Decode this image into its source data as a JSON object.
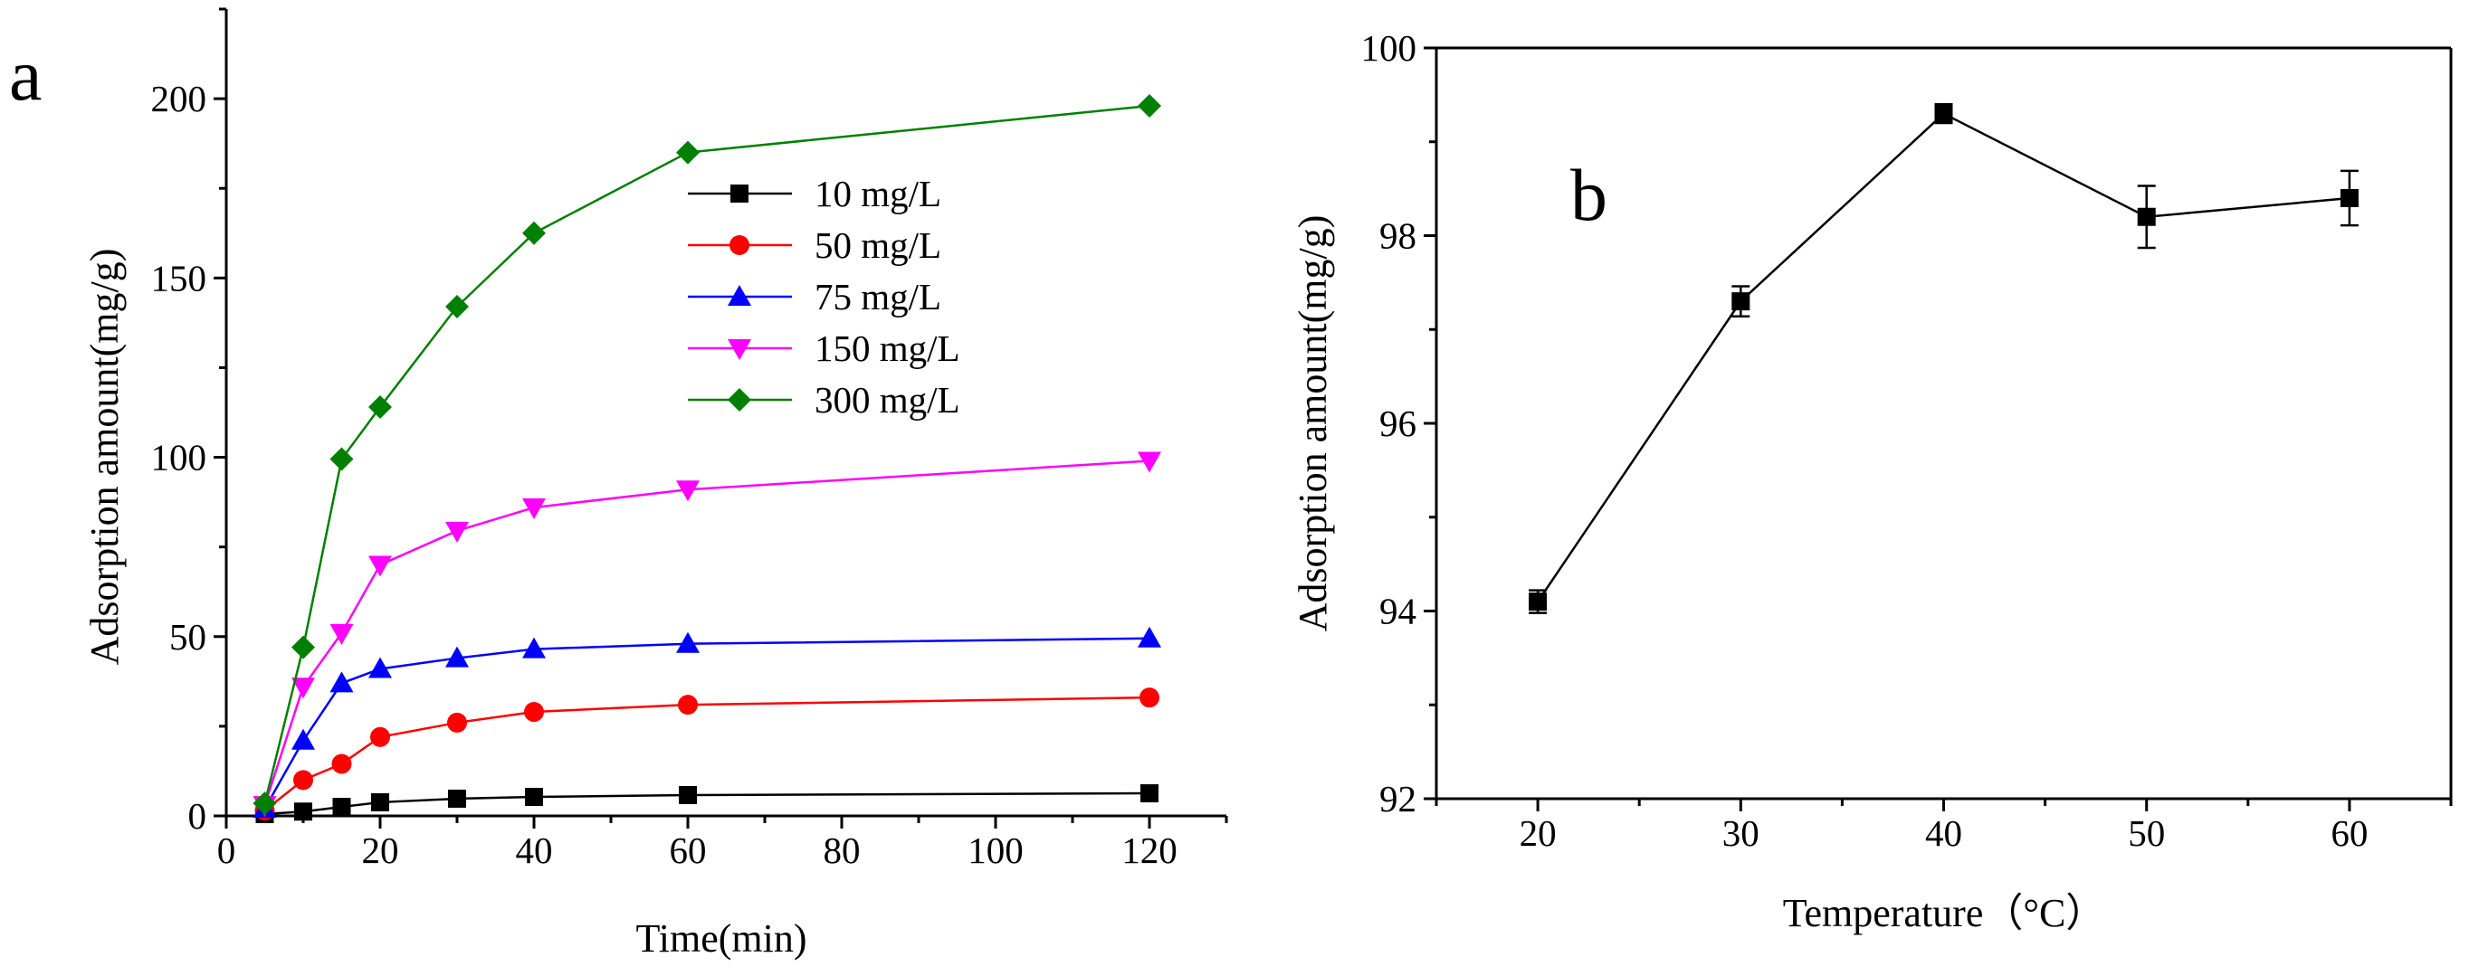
{
  "panels": {
    "a": {
      "letter": "a"
    },
    "b": {
      "letter": "b"
    }
  },
  "chart_data": [
    {
      "type": "line",
      "panel": "a",
      "title": "",
      "xlabel": "Time(min)",
      "ylabel": "Adsorption amount(mg/g)",
      "xlim": [
        0,
        130
      ],
      "ylim": [
        0,
        225
      ],
      "x_ticks": [
        0,
        20,
        40,
        60,
        80,
        100,
        120
      ],
      "x_tick_labels": [
        "0",
        "20",
        "40",
        "60",
        "80",
        "100",
        "120"
      ],
      "y_ticks": [
        0,
        50,
        100,
        150,
        200
      ],
      "y_tick_labels": [
        "0",
        "50",
        "100",
        "150",
        "200"
      ],
      "legend_position": "top-center",
      "x": [
        5,
        10,
        15,
        20,
        30,
        40,
        60,
        120
      ],
      "series": [
        {
          "name": "10 mg/L",
          "color": "#000000",
          "marker": "square",
          "values": [
            0.5,
            1.2,
            2.5,
            3.8,
            4.8,
            5.3,
            5.8,
            6.3
          ]
        },
        {
          "name": "50 mg/L",
          "color": "#ff0000",
          "marker": "circle",
          "values": [
            1.5,
            10,
            14.5,
            22,
            26,
            29,
            31,
            33
          ]
        },
        {
          "name": "75 mg/L",
          "color": "#0000ff",
          "marker": "triangle-up",
          "values": [
            2,
            21,
            37,
            41,
            44,
            46.5,
            48,
            49.5
          ]
        },
        {
          "name": "150 mg/L",
          "color": "#ff00ff",
          "marker": "triangle-down",
          "values": [
            3,
            36,
            51,
            70,
            79.5,
            86,
            91,
            99
          ]
        },
        {
          "name": "300 mg/L",
          "color": "#008000",
          "marker": "diamond",
          "values": [
            3.5,
            47,
            99.5,
            114,
            142,
            162.5,
            185,
            198
          ]
        }
      ]
    },
    {
      "type": "line",
      "panel": "b",
      "title": "",
      "xlabel": "Temperature（°C）",
      "ylabel": "Adsorption amount(mg/g)",
      "xlim": [
        15,
        65
      ],
      "ylim": [
        92,
        100
      ],
      "x_ticks": [
        20,
        30,
        40,
        50,
        60
      ],
      "x_tick_labels": [
        "20",
        "30",
        "40",
        "50",
        "60"
      ],
      "y_ticks": [
        92,
        94,
        96,
        98,
        100
      ],
      "y_tick_labels": [
        "92",
        "94",
        "96",
        "98",
        "100"
      ],
      "x": [
        20,
        30,
        40,
        50,
        60
      ],
      "series": [
        {
          "name": "Adsorption amount",
          "color": "#000000",
          "marker": "square",
          "values": [
            94.1,
            97.3,
            99.3,
            98.2,
            98.4
          ],
          "errors": [
            0.12,
            0.16,
            0.1,
            0.33,
            0.29
          ]
        }
      ]
    }
  ]
}
